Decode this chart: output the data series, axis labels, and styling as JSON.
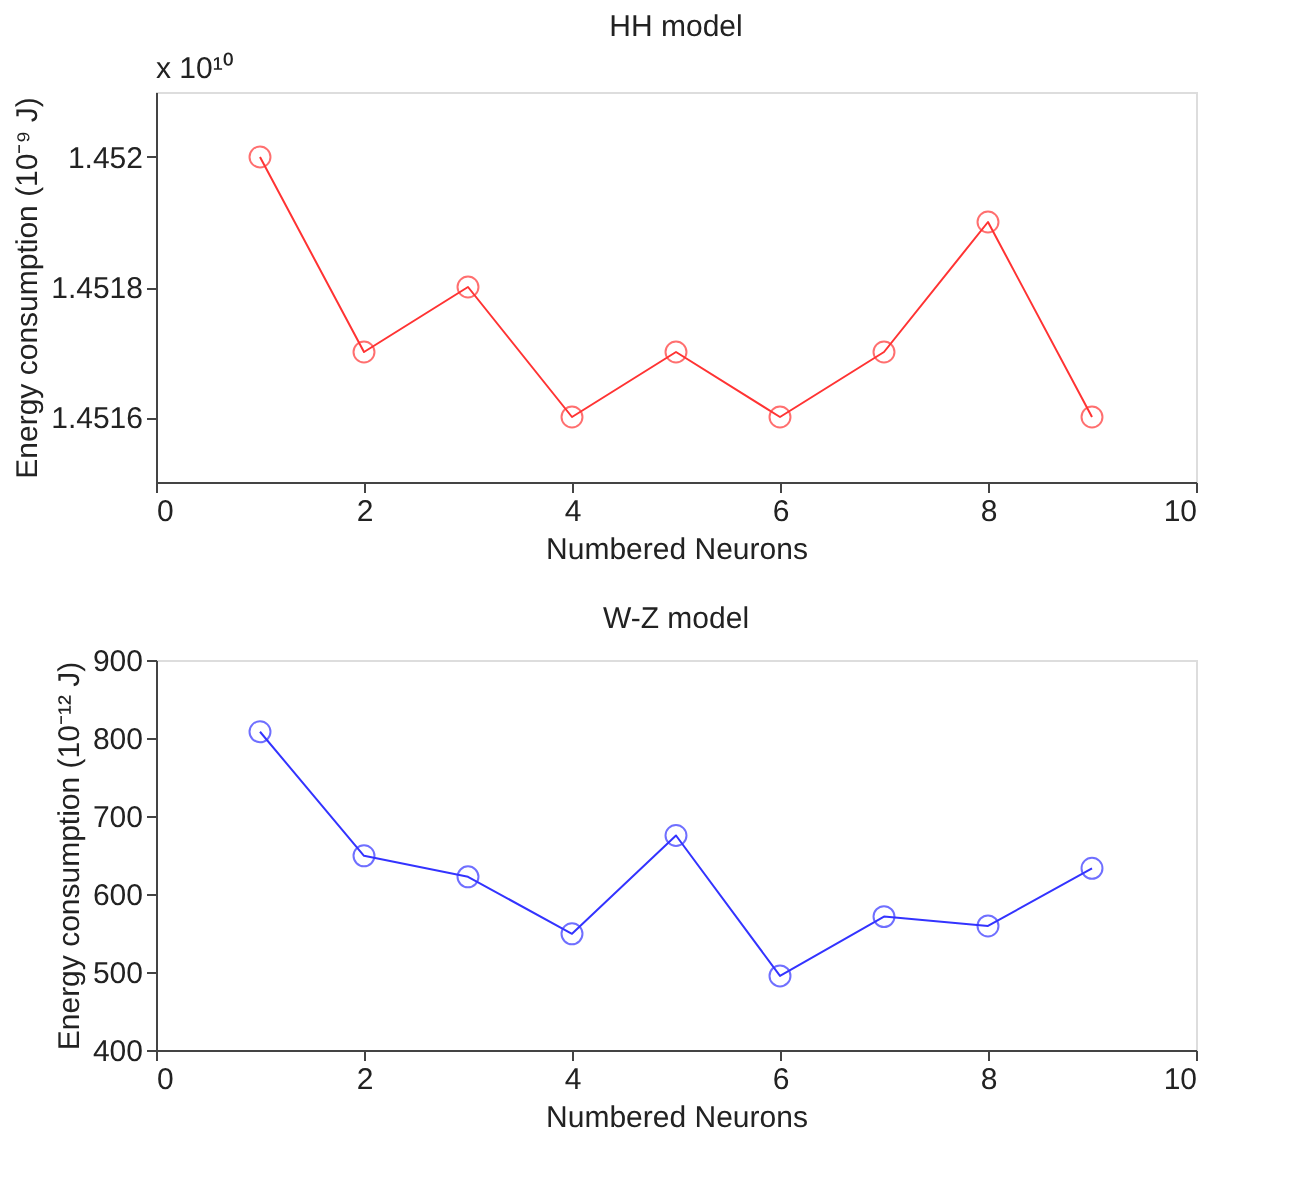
{
  "chart_data": [
    {
      "type": "line",
      "title": "HH model",
      "xlabel": "Numbered Neurons",
      "ylabel": "Energy consumption (10⁻⁹ J)",
      "annotations": [
        "x 10¹⁰"
      ],
      "x": [
        1,
        2,
        3,
        4,
        5,
        6,
        7,
        8,
        9
      ],
      "series": [
        {
          "color": "#ff3333",
          "values": [
            1.452,
            1.4517,
            1.4518,
            1.4516,
            1.4517,
            1.4516,
            1.4517,
            1.4519,
            1.4516
          ]
        }
      ],
      "xlim": [
        0,
        10
      ],
      "xticks": [
        0,
        2,
        4,
        6,
        8,
        10
      ],
      "ylim": [
        1.4515,
        1.4521
      ],
      "yticks": [
        1.4516,
        1.4518,
        1.452
      ],
      "marker": "circle",
      "grid": false
    },
    {
      "type": "line",
      "title": "W-Z model",
      "xlabel": "Numbered Neurons",
      "ylabel": "Energy consumption (10⁻¹² J)",
      "x": [
        1,
        2,
        3,
        4,
        5,
        6,
        7,
        8,
        9
      ],
      "series": [
        {
          "color": "#3333ff",
          "values": [
            808,
            649,
            622,
            549,
            675,
            495,
            571,
            559,
            633
          ]
        }
      ],
      "xlim": [
        0,
        10
      ],
      "xticks": [
        0,
        2,
        4,
        6,
        8,
        10
      ],
      "ylim": [
        400,
        900
      ],
      "yticks": [
        400,
        500,
        600,
        700,
        800,
        900
      ],
      "marker": "circle",
      "grid": false
    }
  ]
}
